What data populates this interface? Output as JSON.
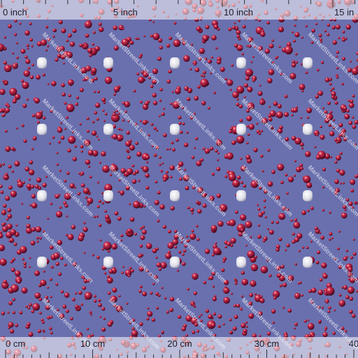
{
  "ruler_top": {
    "labels": [
      "0 inch",
      "5 inch",
      "10 inch",
      "15 in"
    ]
  },
  "ruler_bottom": {
    "labels": [
      "0 cm",
      "10 cm",
      "20 cm",
      "30 cm",
      "40"
    ]
  },
  "watermark": "MarketStreetLinks.com"
}
